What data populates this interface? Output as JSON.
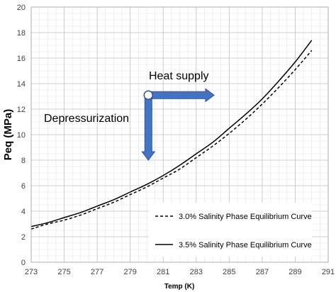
{
  "chart_data": {
    "type": "line",
    "xlabel": "Temp (K)",
    "ylabel": "Peq (MPa)",
    "xlim": [
      273,
      291
    ],
    "ylim": [
      0,
      20
    ],
    "x_ticks": [
      "273",
      "275",
      "277",
      "279",
      "281",
      "283",
      "285",
      "287",
      "289",
      "291"
    ],
    "y_ticks": [
      "0",
      "2",
      "4",
      "6",
      "8",
      "10",
      "12",
      "14",
      "16",
      "18",
      "20"
    ],
    "grid": true,
    "legend_position": "bottom-right",
    "series": [
      {
        "name": "3.0% Salinity Phase Equilibrium Curve",
        "style": "dashed",
        "color": "#000000",
        "x": [
          273,
          274,
          275,
          276,
          277,
          278,
          279,
          280,
          281,
          282,
          283,
          284,
          285,
          286,
          287,
          288,
          289,
          290
        ],
        "y": [
          2.6,
          3.0,
          3.3,
          3.7,
          4.2,
          4.7,
          5.3,
          5.9,
          6.6,
          7.3,
          8.2,
          9.1,
          10.1,
          11.2,
          12.4,
          13.7,
          15.1,
          16.6
        ]
      },
      {
        "name": "3.5% Salinity Phase Equilibrium Curve",
        "style": "solid",
        "color": "#000000",
        "x": [
          273,
          274,
          275,
          276,
          277,
          278,
          279,
          280,
          281,
          282,
          283,
          284,
          285,
          286,
          287,
          288,
          289,
          290
        ],
        "y": [
          2.8,
          3.1,
          3.5,
          3.9,
          4.4,
          4.9,
          5.5,
          6.1,
          6.8,
          7.6,
          8.5,
          9.4,
          10.5,
          11.6,
          12.8,
          14.2,
          15.7,
          17.4
        ]
      }
    ],
    "annotations": [
      {
        "text": "Heat supply",
        "arrow_direction": "right"
      },
      {
        "text": "Depressurization",
        "arrow_direction": "down"
      }
    ],
    "arrow_origin": {
      "x": 280.1,
      "y": 13.1
    },
    "arrow_color": "#4472C4",
    "arrow_border_color": "#2F5597"
  }
}
